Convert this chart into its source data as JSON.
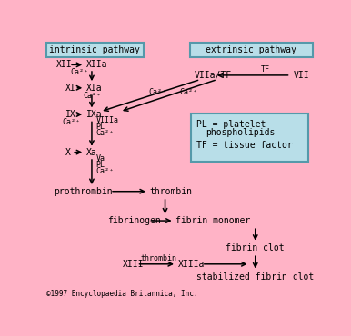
{
  "bg_color": "#FFB3C6",
  "box_color": "#B8DEE8",
  "box_edge_color": "#5599AA",
  "text_color": "#000000",
  "arrow_color": "#000000",
  "fig_width": 3.86,
  "fig_height": 3.7,
  "copyright": "©1997 Encyclopaedia Britannica, Inc.",
  "intrinsic_label": "intrinsic pathway",
  "extrinsic_label": "extrinsic pathway",
  "font_size": 7.0,
  "small_font": 6.0,
  "mono_font": "monospace"
}
